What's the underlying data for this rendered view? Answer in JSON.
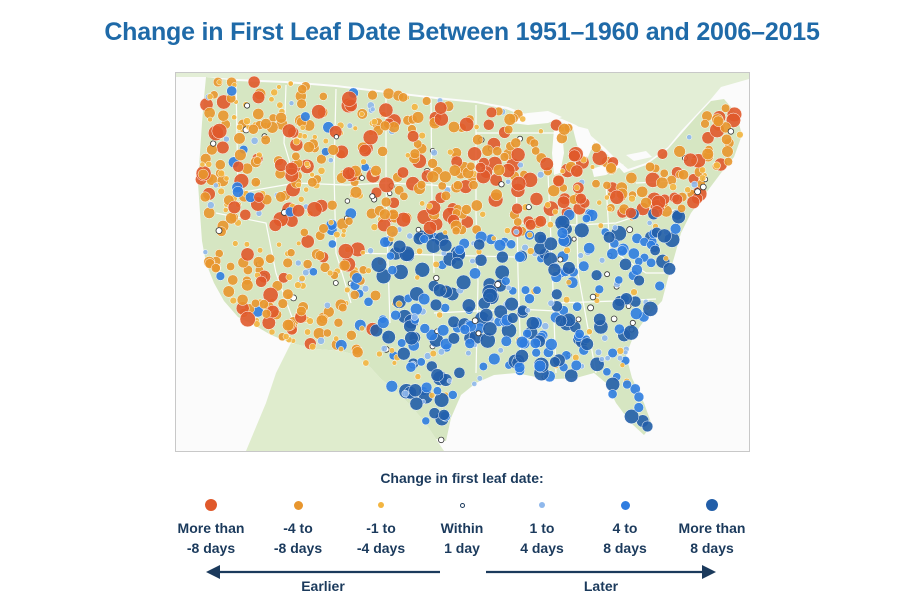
{
  "title": "Change in First Leaf Date Between 1951–1960 and 2006–2015",
  "map": {
    "land_color": "#d6e6c2",
    "water_color": "#fbfbfb",
    "border_color": "#ffffff",
    "categories": [
      {
        "key": "gt-8-earlier",
        "color": "#e0592b"
      },
      {
        "key": "4-8-earlier",
        "color": "#e8962e"
      },
      {
        "key": "1-4-earlier",
        "color": "#f3b541"
      },
      {
        "key": "within-1",
        "color": "#ffffff"
      },
      {
        "key": "1-4-later",
        "color": "#8fb8ec"
      },
      {
        "key": "4-8-later",
        "color": "#2f7de0"
      },
      {
        "key": "gt-8-later",
        "color": "#225ea8"
      }
    ]
  },
  "legend": {
    "title": "Change in first leaf date:",
    "items": [
      {
        "label": "More than\n-8 days",
        "color": "#e0592b",
        "size": 12,
        "outline": false
      },
      {
        "label": "-4 to\n-8 days",
        "color": "#e8962e",
        "size": 9,
        "outline": false
      },
      {
        "label": "-1 to\n-4 days",
        "color": "#f3b541",
        "size": 6,
        "outline": false
      },
      {
        "label": "Within\n1 day",
        "color": "#ffffff",
        "size": 5,
        "outline": true
      },
      {
        "label": "1 to\n4 days",
        "color": "#8fb8ec",
        "size": 6,
        "outline": false
      },
      {
        "label": "4 to\n8 days",
        "color": "#2f7de0",
        "size": 9,
        "outline": false
      },
      {
        "label": "More than\n8 days",
        "color": "#225ea8",
        "size": 12,
        "outline": false
      }
    ],
    "earlier_label": "Earlier",
    "later_label": "Later",
    "arrow_color": "#1b3a5c"
  }
}
